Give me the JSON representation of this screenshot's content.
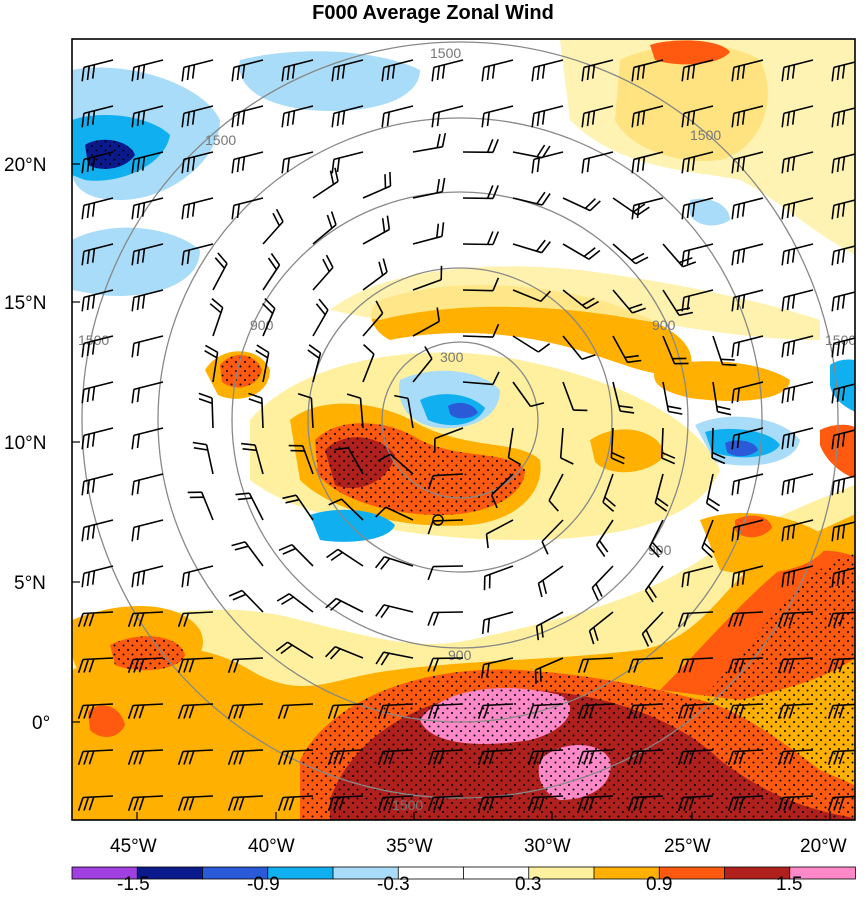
{
  "title": "F000 Average Zonal Wind",
  "axes": {
    "lat_labels": [
      "20°N",
      "15°N",
      "10°N",
      "5°N",
      "0°"
    ],
    "lon_labels": [
      "45°W",
      "40°W",
      "35°W",
      "30°W",
      "25°W",
      "20°W"
    ]
  },
  "range_rings": {
    "labels": [
      "300",
      "900",
      "900",
      "900",
      "900",
      "1500",
      "1500",
      "1500",
      "1500",
      "1500",
      "1500"
    ]
  },
  "colorbar": {
    "colors": [
      "#a040e0",
      "#0a1a8c",
      "#2a5ad8",
      "#10b0f0",
      "#a8dcf8",
      "#ffffff",
      "#ffffff",
      "#fff0a0",
      "#ffb000",
      "#ff5a10",
      "#b0201c",
      "#ff88c8"
    ],
    "labels": [
      "-1.5",
      "-0.9",
      "-0.3",
      "0.3",
      "0.9",
      "1.5"
    ]
  },
  "colors": {
    "ring": "#888888",
    "barb": "#000000",
    "frame": "#000000"
  }
}
